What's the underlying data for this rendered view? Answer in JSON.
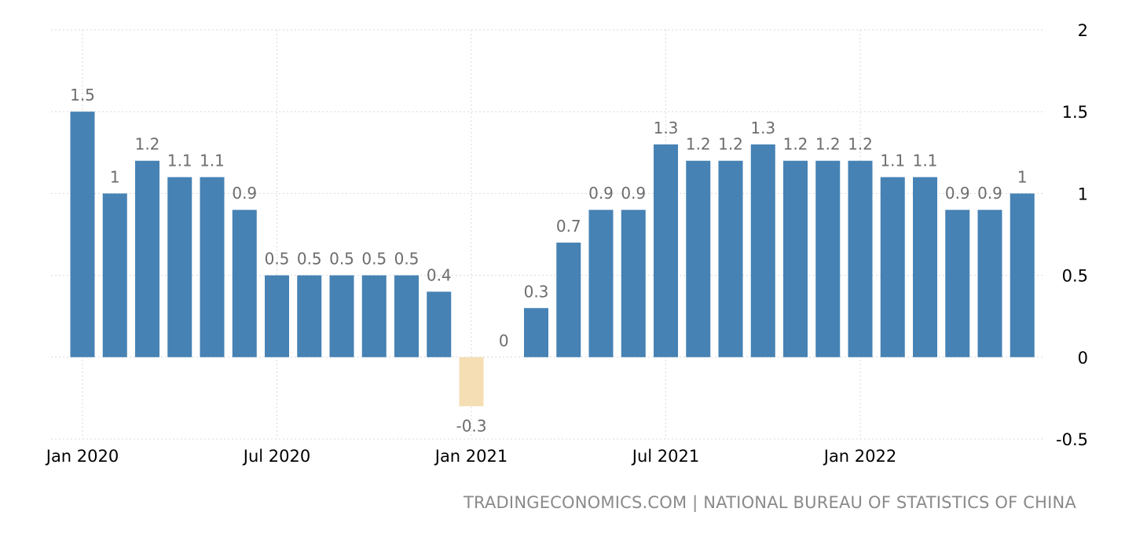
{
  "chart_data": {
    "type": "bar",
    "categories": [
      "Jan 2020",
      "Feb 2020",
      "Mar 2020",
      "Apr 2020",
      "May 2020",
      "Jun 2020",
      "Jul 2020",
      "Aug 2020",
      "Sep 2020",
      "Oct 2020",
      "Nov 2020",
      "Dec 2020",
      "Jan 2021",
      "Feb 2021",
      "Mar 2021",
      "Apr 2021",
      "May 2021",
      "Jun 2021",
      "Jul 2021",
      "Aug 2021",
      "Sep 2021",
      "Oct 2021",
      "Nov 2021",
      "Dec 2021",
      "Jan 2022",
      "Feb 2022",
      "Mar 2022",
      "Apr 2022",
      "May 2022",
      "Jun 2022"
    ],
    "values": [
      1.5,
      1,
      1.2,
      1.1,
      1.1,
      0.9,
      0.5,
      0.5,
      0.5,
      0.5,
      0.5,
      0.4,
      -0.3,
      0,
      0.3,
      0.7,
      0.9,
      0.9,
      1.3,
      1.2,
      1.2,
      1.3,
      1.2,
      1.2,
      1.2,
      1.1,
      1.1,
      0.9,
      0.9,
      1
    ],
    "data_labels": [
      "1.5",
      "1",
      "1.2",
      "1.1",
      "1.1",
      "0.9",
      "0.5",
      "0.5",
      "0.5",
      "0.5",
      "0.5",
      "0.4",
      "-0.3",
      "0",
      "0.3",
      "0.7",
      "0.9",
      "0.9",
      "1.3",
      "1.2",
      "1.2",
      "1.3",
      "1.2",
      "1.2",
      "1.2",
      "1.1",
      "1.1",
      "0.9",
      "0.9",
      "1"
    ],
    "x_tick_labels": [
      {
        "label": "Jan 2020",
        "category": "Jan 2020"
      },
      {
        "label": "Jul 2020",
        "category": "Jul 2020"
      },
      {
        "label": "Jan 2021",
        "category": "Jan 2021"
      },
      {
        "label": "Jul 2021",
        "category": "Jul 2021"
      },
      {
        "label": "Jan 2022",
        "category": "Jan 2022"
      }
    ],
    "y_ticks": [
      2,
      1.5,
      1,
      0.5,
      0,
      -0.5
    ],
    "y_tick_labels": [
      "2",
      "1.5",
      "1",
      "0.5",
      "0",
      "-0.5"
    ],
    "ylim": [
      -0.5,
      2
    ],
    "y_axis_side": "right",
    "grid": true,
    "colors": {
      "positive": "#4682b4",
      "negative": "#f5deb3"
    },
    "title": "",
    "xlabel": "",
    "ylabel": ""
  },
  "source_text": "TRADINGECONOMICS.COM | NATIONAL BUREAU OF STATISTICS OF CHINA"
}
